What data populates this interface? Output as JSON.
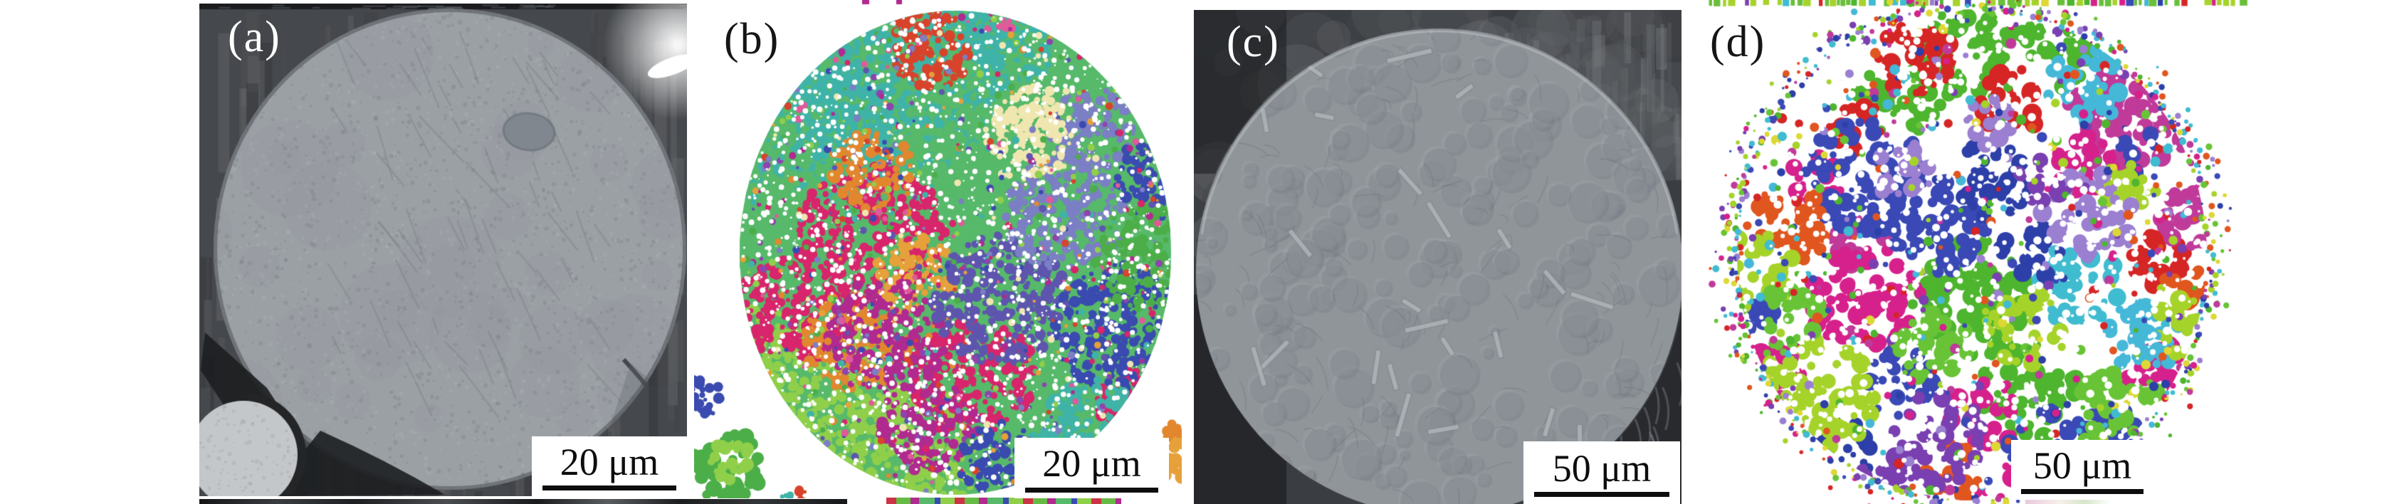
{
  "figure": {
    "panels": [
      {
        "id": "a",
        "label": "(a)",
        "label_color": "#ffffff",
        "scale_text": "20 μm"
      },
      {
        "id": "b",
        "label": "(b)",
        "label_color": "#151515",
        "scale_text": "20 μm"
      },
      {
        "id": "c",
        "label": "(c)",
        "label_color": "#ffffff",
        "scale_text": "50 μm"
      },
      {
        "id": "d",
        "label": "(d)",
        "label_color": "#151515",
        "scale_text": "50 μm"
      }
    ],
    "colors": {
      "background": "#ffffff",
      "scalebar_box": "#ffffff",
      "scalebar_line": "#0d0d0d",
      "sem": {
        "bg_dark": "#3a3d41",
        "bg_mid": "#45484c",
        "particle_a": "#9ba0a5",
        "particle_c": "#90959a",
        "satellite": "#c4c7ca",
        "shadow": "#232527",
        "highlight": "#ffffff"
      },
      "ebsd_b_palette": [
        "#3fb3a8",
        "#57b96a",
        "#8fcf4a",
        "#d8256b",
        "#d8432c",
        "#e2872f",
        "#efe6b0",
        "#b02a8f",
        "#5e55ae",
        "#3a4bb0",
        "#7b7fc4",
        "#4cae48",
        "#e6a13a",
        "#8e44ad",
        "#e05a9a"
      ],
      "ebsd_d_palette": [
        "#4eb52e",
        "#a6d32a",
        "#3a49b5",
        "#2d3fa8",
        "#9b7fd0",
        "#d6218c",
        "#c03a9a",
        "#d62525",
        "#e0561f",
        "#40bcd0",
        "#7a3fb0",
        "#68c436",
        "#45b8d8",
        "#ddd834"
      ]
    }
  }
}
